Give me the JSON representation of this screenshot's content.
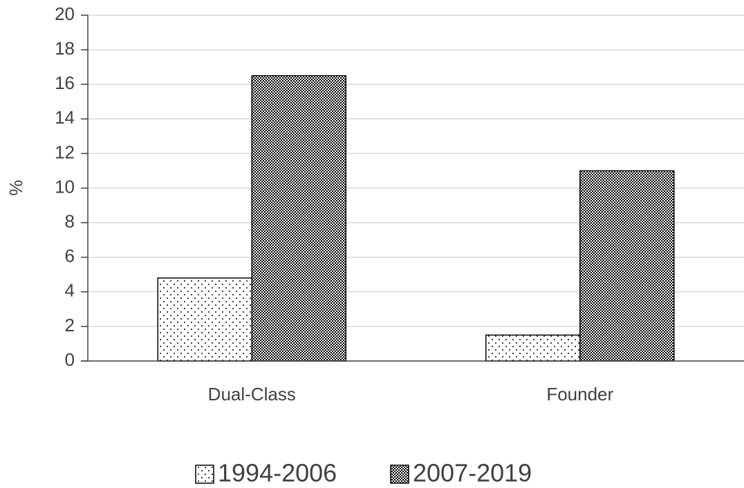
{
  "chart_data": {
    "type": "bar",
    "y_label": "%",
    "categories": [
      "Dual-Class",
      "Founder"
    ],
    "series": [
      {
        "name": "1994-2006",
        "values": [
          4.8,
          1.5
        ]
      },
      {
        "name": "2007-2019",
        "values": [
          16.5,
          11.0
        ]
      }
    ],
    "ylim": [
      0,
      20
    ],
    "yticks": [
      0,
      2,
      4,
      6,
      8,
      10,
      12,
      14,
      16,
      18,
      20
    ],
    "grid": true,
    "legend": "bottom"
  }
}
